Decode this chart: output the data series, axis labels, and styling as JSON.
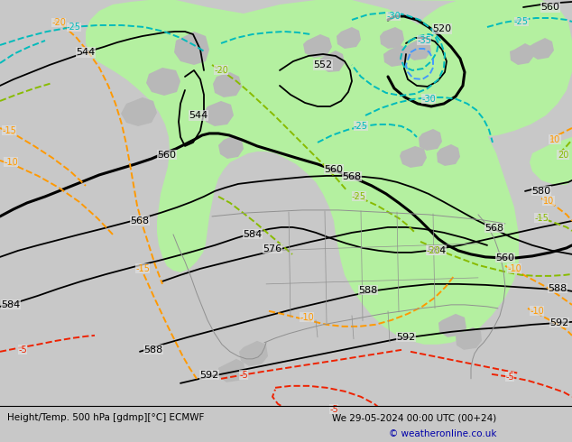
{
  "title_left": "Height/Temp. 500 hPa [gdmp][°C] ECMWF",
  "title_right": "We 29-05-2024 00:00 UTC (00+24)",
  "copyright": "© weatheronline.co.uk",
  "bg_outer": "#c8c8c8",
  "map_bg": "#e0e0e0",
  "green_fill": "#b4f0a0",
  "gray_land": "#b8b8b8",
  "z500_color": "#000000",
  "orange_color": "#ff9900",
  "teal_color": "#00bbbb",
  "blue_color": "#4499ff",
  "olive_color": "#88bb00",
  "red_color": "#ee2200",
  "font_size": 7,
  "font_size_title": 7.5
}
